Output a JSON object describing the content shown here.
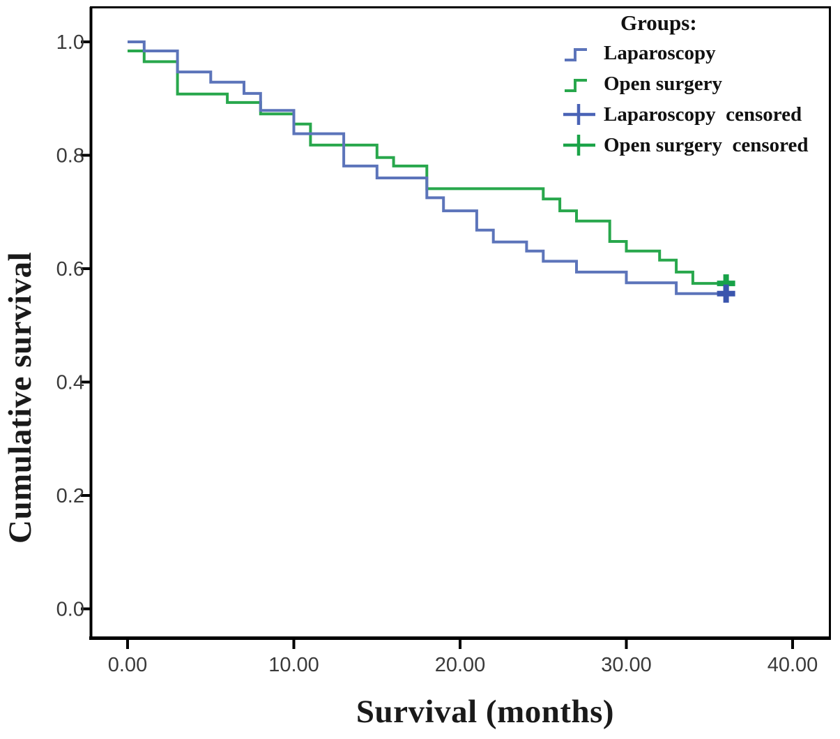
{
  "figure": {
    "x_axis": {
      "title": "Survival (months)",
      "ticks": [
        {
          "label": "0.00",
          "value": 0
        },
        {
          "label": "10.00",
          "value": 10
        },
        {
          "label": "20.00",
          "value": 20
        },
        {
          "label": "30.00",
          "value": 30
        },
        {
          "label": "40.00",
          "value": 40
        }
      ]
    },
    "y_axis": {
      "title": "Cumulative survival",
      "ticks": [
        {
          "label": "0.0",
          "value": 0.0
        },
        {
          "label": "0.2",
          "value": 0.2
        },
        {
          "label": "0.4",
          "value": 0.4
        },
        {
          "label": "0.6",
          "value": 0.6
        },
        {
          "label": "0.8",
          "value": 0.8
        },
        {
          "label": "1.0",
          "value": 1.0
        }
      ]
    },
    "legend": {
      "title": "Groups:",
      "items": [
        {
          "label": "Laparoscopy",
          "glyph": "step-line",
          "color": "#5c74ba"
        },
        {
          "label": "Open surgery",
          "glyph": "step-line",
          "color": "#28a74c"
        },
        {
          "label": "Laparoscopy  censored",
          "glyph": "plus-mark",
          "color": "#4a63b6"
        },
        {
          "label": "Open surgery  censored",
          "glyph": "plus-mark",
          "color": "#1ba348"
        }
      ]
    },
    "colors": {
      "laparoscopy_line": "#5c74ba",
      "open_surgery_line": "#28a74c",
      "laparoscopy_censor": "#3a55ad",
      "open_surgery_censor": "#17a248",
      "axis": "#000000",
      "tick_text": "#3a3a3a"
    }
  },
  "chart_data": {
    "type": "line",
    "subtype": "kaplan-meier-step",
    "xlabel": "Survival (months)",
    "ylabel": "Cumulative survival",
    "xlim": [
      -2.2,
      42.3
    ],
    "ylim": [
      -0.05,
      1.06
    ],
    "x_ticks": [
      0,
      10,
      20,
      30,
      40
    ],
    "y_ticks": [
      0.0,
      0.2,
      0.4,
      0.6,
      0.8,
      1.0
    ],
    "grid": false,
    "legend_position": "top-right-inside",
    "series": [
      {
        "name": "Laparoscopy",
        "color": "#5c74ba",
        "censor_color": "#3a55ad",
        "end_month": 36.4,
        "points": [
          [
            0,
            1.0
          ],
          [
            1,
            0.984
          ],
          [
            3,
            0.947
          ],
          [
            5,
            0.929
          ],
          [
            7,
            0.909
          ],
          [
            8,
            0.879
          ],
          [
            10,
            0.838
          ],
          [
            13,
            0.781
          ],
          [
            15,
            0.76
          ],
          [
            18,
            0.725
          ],
          [
            19,
            0.702
          ],
          [
            21,
            0.668
          ],
          [
            22,
            0.647
          ],
          [
            24,
            0.631
          ],
          [
            25,
            0.613
          ],
          [
            27,
            0.594
          ],
          [
            30,
            0.575
          ],
          [
            33,
            0.556
          ]
        ],
        "censored": [
          [
            36,
            0.556
          ]
        ]
      },
      {
        "name": "Open surgery",
        "color": "#28a74c",
        "censor_color": "#17a248",
        "end_month": 36.4,
        "points": [
          [
            0,
            0.984
          ],
          [
            1,
            0.965
          ],
          [
            3,
            0.908
          ],
          [
            6,
            0.893
          ],
          [
            8,
            0.873
          ],
          [
            10,
            0.855
          ],
          [
            11,
            0.818
          ],
          [
            15,
            0.796
          ],
          [
            16,
            0.781
          ],
          [
            18,
            0.741
          ],
          [
            25,
            0.723
          ],
          [
            26,
            0.702
          ],
          [
            27,
            0.684
          ],
          [
            29,
            0.648
          ],
          [
            30,
            0.631
          ],
          [
            32,
            0.615
          ],
          [
            33,
            0.594
          ],
          [
            34,
            0.574
          ]
        ],
        "censored": [
          [
            36,
            0.574
          ]
        ]
      }
    ]
  }
}
